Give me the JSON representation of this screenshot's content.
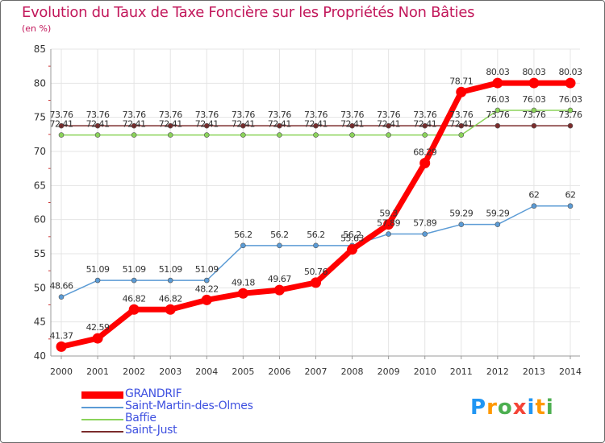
{
  "chart_data": {
    "type": "line",
    "title": "Evolution du Taux de Taxe Foncière sur les Propriétés Non Bâties",
    "ylabel": "(en %)",
    "xlabel": "",
    "ylim": [
      40,
      85
    ],
    "yticks": [
      40,
      45,
      50,
      55,
      60,
      65,
      70,
      75,
      80,
      85
    ],
    "categories": [
      "2000",
      "2001",
      "2002",
      "2003",
      "2004",
      "2005",
      "2006",
      "2007",
      "2008",
      "2009",
      "2010",
      "2011",
      "2012",
      "2013",
      "2014"
    ],
    "series": [
      {
        "name": "GRANDRIF",
        "color": "#ff0000",
        "values": [
          41.37,
          42.59,
          46.82,
          46.82,
          48.22,
          49.18,
          49.67,
          50.76,
          55.63,
          59.3,
          68.29,
          78.71,
          80.03,
          80.03,
          80.03
        ],
        "labels": [
          "41.37",
          "42.59",
          "46.82",
          "46.82",
          "48.22",
          "49.18",
          "49.67",
          "50.76",
          "55.63",
          "59.3",
          "68.29",
          "78.71",
          "80.03",
          "80.03",
          "80.03"
        ]
      },
      {
        "name": "Saint-Martin-des-Olmes",
        "color": "#5b9bd5",
        "values": [
          48.66,
          51.09,
          51.09,
          51.09,
          51.09,
          56.2,
          56.2,
          56.2,
          56.2,
          57.89,
          57.89,
          59.29,
          59.29,
          62,
          62
        ],
        "labels": [
          "48.66",
          "51.09",
          "51.09",
          "51.09",
          "51.09",
          "56.2",
          "56.2",
          "56.2",
          "56.2",
          "57.89",
          "57.89",
          "59.29",
          "59.29",
          "62",
          "62"
        ]
      },
      {
        "name": "Baffie",
        "color": "#8bd35a",
        "values": [
          72.41,
          72.41,
          72.41,
          72.41,
          72.41,
          72.41,
          72.41,
          72.41,
          72.41,
          72.41,
          72.41,
          72.41,
          76.03,
          76.03,
          76.03
        ],
        "labels": [
          "72.41",
          "72.41",
          "72.41",
          "72.41",
          "72.41",
          "72.41",
          "72.41",
          "72.41",
          "72.41",
          "72.41",
          "72.41",
          "72.41",
          "76.03",
          "76.03",
          "76.03"
        ]
      },
      {
        "name": "Saint-Just",
        "color": "#7b2c2c",
        "values": [
          73.76,
          73.76,
          73.76,
          73.76,
          73.76,
          73.76,
          73.76,
          73.76,
          73.76,
          73.76,
          73.76,
          73.76,
          73.76,
          73.76,
          73.76
        ],
        "labels": [
          "73.76",
          "73.76",
          "73.76",
          "73.76",
          "73.76",
          "73.76",
          "73.76",
          "73.76",
          "73.76",
          "73.76",
          "73.76",
          "73.76",
          "73.76",
          "73.76",
          "73.76"
        ]
      }
    ]
  },
  "logo": {
    "letters": [
      {
        "ch": "P",
        "color": "#2196f3"
      },
      {
        "ch": "r",
        "color": "#ff9800"
      },
      {
        "ch": "o",
        "color": "#4caf50"
      },
      {
        "ch": "x",
        "color": "#f44336"
      },
      {
        "ch": "i",
        "color": "#2196f3"
      },
      {
        "ch": "t",
        "color": "#ff9800"
      },
      {
        "ch": "i",
        "color": "#4caf50"
      }
    ]
  }
}
